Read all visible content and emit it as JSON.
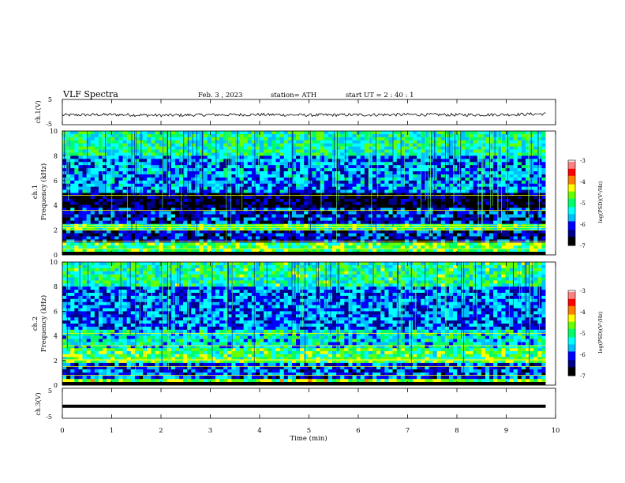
{
  "header": {
    "title": "VLF  Spectra",
    "date": "Feb. 3  , 2023",
    "station": "station= ATH",
    "start": "start  UT  =   2  : 40 : 1"
  },
  "chart_data": [
    {
      "type": "line",
      "name": "ch.1 waveform",
      "ylabel": "ch.1(V)",
      "ylim": [
        -5,
        5
      ],
      "yticks": [
        "5",
        "-5"
      ],
      "xlim": [
        0,
        10
      ],
      "x": [
        0,
        1,
        2,
        3,
        4,
        5,
        6,
        7,
        8,
        9,
        9.8
      ],
      "values": [
        -1.2,
        -1.0,
        -1.3,
        -1.1,
        -1.0,
        -1.2,
        -1.1,
        -1.0,
        -1.1,
        -1.0,
        -0.7
      ]
    },
    {
      "type": "heatmap",
      "name": "ch.1 spectrogram",
      "ylabel": "ch.1\nFrequency  (kHz)",
      "ylim": [
        0,
        10
      ],
      "yticks": [
        "0",
        "2",
        "4",
        "6",
        "8",
        "10"
      ],
      "xlim": [
        0,
        9.8
      ],
      "colorbar": {
        "label": "log(PSD)(V²/Hz)",
        "range": [
          -7,
          -3
        ],
        "ticks": [
          "-3",
          "-4",
          "-5",
          "-6",
          "-7"
        ]
      },
      "bands": [
        {
          "from_khz": 8.0,
          "to_khz": 10.0,
          "level": -5.2
        },
        {
          "from_khz": 5.0,
          "to_khz": 8.0,
          "level": -5.8
        },
        {
          "from_khz": 3.8,
          "to_khz": 5.0,
          "level": -6.8
        },
        {
          "from_khz": 2.5,
          "to_khz": 3.8,
          "level": -6.2
        },
        {
          "from_khz": 2.0,
          "to_khz": 2.5,
          "level": -5.0
        },
        {
          "from_khz": 1.0,
          "to_khz": 2.0,
          "level": -6.3
        },
        {
          "from_khz": 0.0,
          "to_khz": 1.0,
          "level": -4.8
        }
      ],
      "lines_khz": [
        0.5,
        1.1,
        2.0,
        2.2,
        2.4,
        3.6,
        4.8
      ]
    },
    {
      "type": "heatmap",
      "name": "ch.2 spectrogram",
      "ylabel": "ch.2\nFrequency  (kHz)",
      "ylim": [
        0,
        10
      ],
      "yticks": [
        "0",
        "2",
        "4",
        "6",
        "8",
        "10"
      ],
      "xlim": [
        0,
        9.8
      ],
      "colorbar": {
        "label": "log(PSD)(V²/Hz)",
        "range": [
          -7,
          -3
        ],
        "ticks": [
          "-3",
          "-4",
          "-5",
          "-6",
          "-7"
        ]
      },
      "bands": [
        {
          "from_khz": 8.0,
          "to_khz": 10.0,
          "level": -5.1
        },
        {
          "from_khz": 4.5,
          "to_khz": 8.0,
          "level": -5.9
        },
        {
          "from_khz": 3.0,
          "to_khz": 4.5,
          "level": -5.4
        },
        {
          "from_khz": 1.8,
          "to_khz": 3.0,
          "level": -4.9
        },
        {
          "from_khz": 0.5,
          "to_khz": 1.8,
          "level": -6.0
        },
        {
          "from_khz": 0.0,
          "to_khz": 0.5,
          "level": -4.7
        }
      ],
      "lines_khz": [
        0.8,
        1.5,
        2.0,
        2.1,
        3.2,
        4.2
      ]
    },
    {
      "type": "line",
      "name": "ch.3 waveform",
      "ylabel": "ch.3(V)",
      "ylim": [
        -5,
        5
      ],
      "yticks": [
        "5",
        "-5"
      ],
      "xlim": [
        0,
        10
      ],
      "x": [
        0,
        9.8
      ],
      "values": [
        -1.0,
        -1.0
      ]
    }
  ],
  "xaxis": {
    "label": "Time  (min)",
    "ticks": [
      "0",
      "1",
      "2",
      "3",
      "4",
      "5",
      "6",
      "7",
      "8",
      "9",
      "10"
    ],
    "range": [
      0,
      10
    ]
  },
  "colors": {
    "scale": [
      "#000000",
      "#00008b",
      "#0000ff",
      "#00bfff",
      "#00ffff",
      "#00ff66",
      "#66ff00",
      "#ffff00",
      "#ff8000",
      "#ff0000",
      "#ff8080",
      "#ffffff"
    ]
  }
}
